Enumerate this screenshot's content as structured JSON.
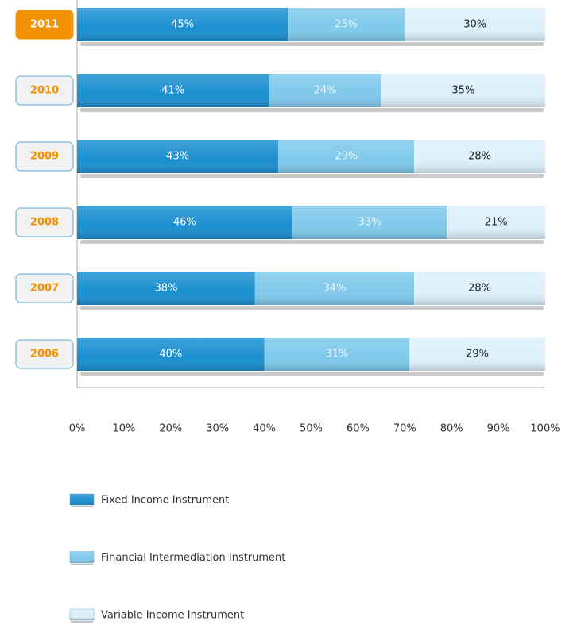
{
  "chart_data": {
    "type": "stacked-barh",
    "categories": [
      "2011",
      "2010",
      "2009",
      "2008",
      "2007",
      "2006"
    ],
    "highlight": "2011",
    "series": [
      {
        "name": "Fixed Income Instrument",
        "color": "#1a8fd0",
        "label_color": "#ffffff",
        "values": [
          45,
          41,
          43,
          46,
          38,
          40
        ],
        "value_labels": [
          "45%",
          "41%",
          "43%",
          "46%",
          "38%",
          "40%"
        ]
      },
      {
        "name": "Financial Intermediation Instrument",
        "color": "#7fc9ec",
        "label_color": "#e8f6fd",
        "values": [
          25,
          24,
          29,
          33,
          34,
          31
        ],
        "value_labels": [
          "25%",
          "24%",
          "29%",
          "33%",
          "34%",
          "31%"
        ]
      },
      {
        "name": "Variable Income Instrument",
        "color": "#dcf0fb",
        "label_color": "#222222",
        "values": [
          30,
          35,
          28,
          21,
          28,
          29
        ],
        "value_labels": [
          "30%",
          "35%",
          "28%",
          "21%",
          "28%",
          "29%"
        ]
      }
    ],
    "xlim": [
      0,
      100
    ],
    "xticks": [
      {
        "value": 0,
        "label": "0%"
      },
      {
        "value": 10,
        "label": "10%"
      },
      {
        "value": 20,
        "label": "20%"
      },
      {
        "value": 30,
        "label": "30%"
      },
      {
        "value": 40,
        "label": "40%"
      },
      {
        "value": 50,
        "label": "50%"
      },
      {
        "value": 60,
        "label": "60%"
      },
      {
        "value": 70,
        "label": "70%"
      },
      {
        "value": 80,
        "label": "80%"
      },
      {
        "value": 90,
        "label": "90%"
      },
      {
        "value": 100,
        "label": "100%"
      }
    ]
  }
}
